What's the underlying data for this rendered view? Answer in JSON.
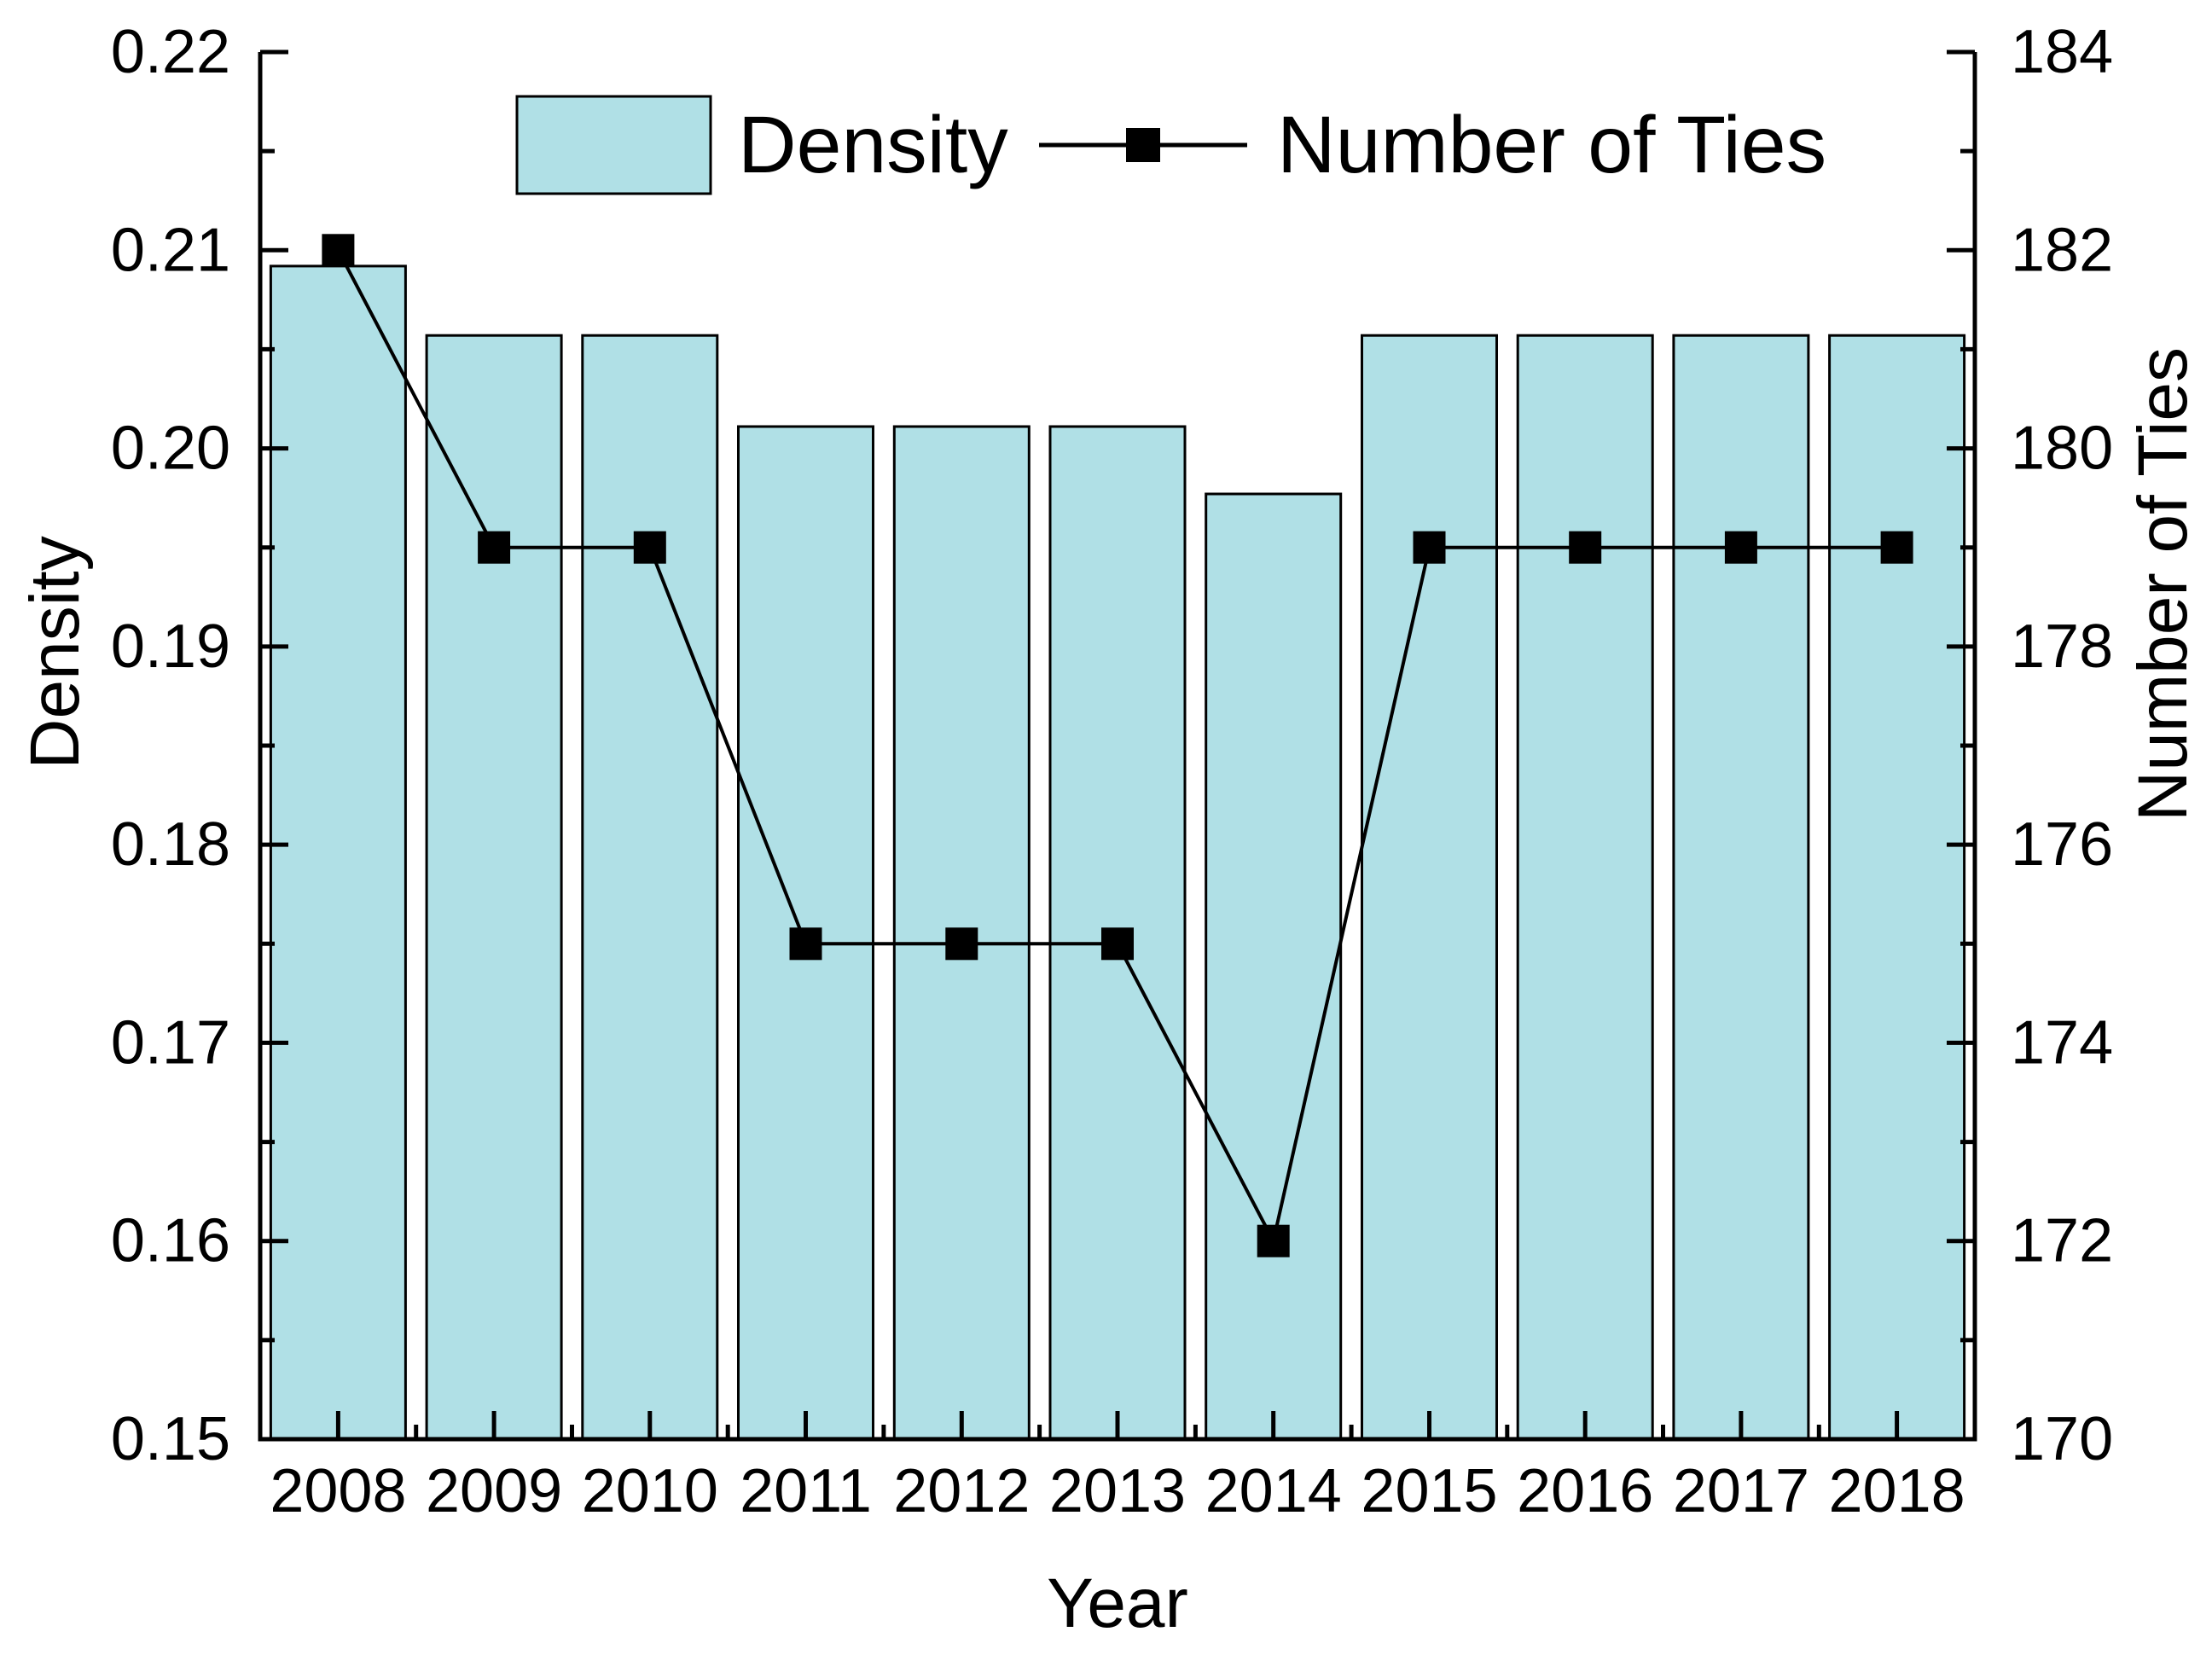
{
  "chart_data": {
    "type": "combo",
    "categories": [
      "2008",
      "2009",
      "2010",
      "2011",
      "2012",
      "2013",
      "2014",
      "2015",
      "2016",
      "2017",
      "2018"
    ],
    "series": [
      {
        "name": "Density",
        "type": "bar",
        "axis": "left",
        "color": "#b0e0e6",
        "border_color": "#000000",
        "values": [
          0.2092,
          0.2057,
          0.2057,
          0.2011,
          0.2011,
          0.2011,
          0.1977,
          0.2057,
          0.2057,
          0.2057,
          0.2057
        ]
      },
      {
        "name": "Number of Ties",
        "type": "line",
        "axis": "right",
        "color": "#000000",
        "marker": "square",
        "values": [
          182,
          179,
          179,
          175,
          175,
          175,
          172,
          179,
          179,
          179,
          179
        ]
      }
    ],
    "xlabel": "Year",
    "left_axis": {
      "label": "Density",
      "min": 0.15,
      "max": 0.22,
      "major_tick_step": 0.01,
      "minor_tick_step": 0.005,
      "tick_labels": [
        "0.15",
        "0.16",
        "0.17",
        "0.18",
        "0.19",
        "0.20",
        "0.21",
        "0.22"
      ]
    },
    "right_axis": {
      "label": "Number of Ties",
      "min": 170,
      "max": 184,
      "major_tick_step": 2,
      "minor_tick_step": 1,
      "tick_labels": [
        "170",
        "172",
        "174",
        "176",
        "178",
        "180",
        "182",
        "184"
      ]
    },
    "x_axis": {
      "label": "Year",
      "tick_labels": [
        "2008",
        "2009",
        "2010",
        "2011",
        "2012",
        "2013",
        "2014",
        "2015",
        "2016",
        "2017",
        "2018"
      ]
    },
    "legend": {
      "position": "top-center",
      "entries": [
        {
          "label": "Density",
          "swatch": "bar"
        },
        {
          "label": "Number of Ties",
          "swatch": "line-marker"
        }
      ]
    },
    "grid": false,
    "background": "#ffffff"
  }
}
